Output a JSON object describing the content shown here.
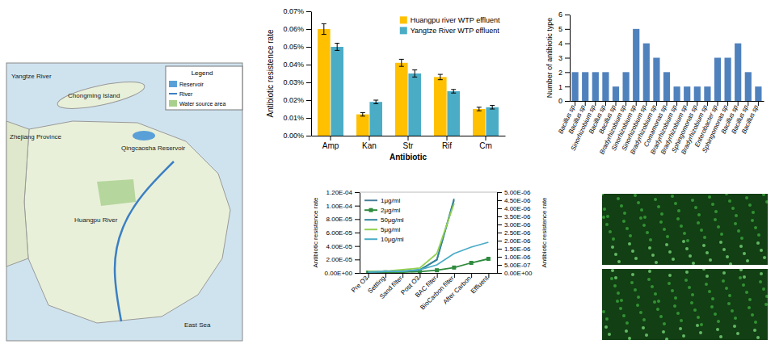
{
  "map": {
    "labels": [
      "Yangtze River",
      "Chongming Island",
      "Zhejiang Province",
      "Qingcaosha Reservoir",
      "Huangpu River",
      "East Sea"
    ],
    "legend": {
      "title": "Legend",
      "items": [
        "Reservoir",
        "River",
        "Water source area"
      ]
    }
  },
  "chart_data": [
    {
      "type": "bar",
      "x_label": "Antibiotic",
      "y_label": "Antibiotic resistence rate",
      "categories": [
        "Amp",
        "Kan",
        "Str",
        "Rif",
        "Cm"
      ],
      "series": [
        {
          "name": "Huangpu river WTP effluent",
          "color": "#ffc000",
          "values": [
            0.06,
            0.012,
            0.041,
            0.033,
            0.015
          ],
          "errors": [
            0.003,
            0.001,
            0.002,
            0.0015,
            0.001
          ]
        },
        {
          "name": "Yangtze River WTP effluent",
          "color": "#4bacc6",
          "values": [
            0.05,
            0.019,
            0.035,
            0.025,
            0.016
          ],
          "errors": [
            0.002,
            0.001,
            0.002,
            0.001,
            0.001
          ]
        }
      ],
      "ylim": [
        0,
        0.07
      ],
      "yticks": [
        {
          "value": 0,
          "label": "0.00%"
        },
        {
          "value": 0.01,
          "label": "0.01%"
        },
        {
          "value": 0.02,
          "label": "0.02%"
        },
        {
          "value": 0.03,
          "label": "0.03%"
        },
        {
          "value": 0.04,
          "label": "0.04%"
        },
        {
          "value": 0.05,
          "label": "0.05%"
        },
        {
          "value": 0.06,
          "label": "0.06%"
        },
        {
          "value": 0.07,
          "label": "0.07%"
        }
      ],
      "legend": "top-right"
    },
    {
      "type": "bar",
      "y_label": "Number of antibiotic type",
      "categories": [
        "Bacillus sp",
        "Bacillus sp",
        "Sinorhizobium sp",
        "Bacillus sp",
        "Bacillus sp",
        "Bradyrhizobium sp",
        "Sinorhizobium sp",
        "Sinorhizobium sp",
        "Bradyrhizobium sp",
        "Comamonas sp",
        "Bradyrhizobium sp",
        "Bradyrhizobium sp",
        "Sphingomonas sp",
        "Bradyrhizobium sp",
        "Enterobacter sp",
        "Sphingomonas sp",
        "Bacillus sp",
        "Bacillus sp",
        "Bacillus sp"
      ],
      "values": [
        2,
        2,
        2,
        2,
        1,
        2,
        5,
        4,
        3,
        2,
        1,
        1,
        1,
        1,
        3,
        3,
        4,
        2,
        1
      ],
      "color": "#4f81bd",
      "ylim": [
        0,
        6
      ],
      "yticks": [
        0,
        1,
        2,
        3,
        4,
        5,
        6
      ]
    },
    {
      "type": "line",
      "y_label": "Antibiotic resistence rate",
      "y2_label": "Antibiotic resistence rate",
      "categories": [
        "Pre O3",
        "Settling",
        "Sand filter",
        "Post O3",
        "BAC filter",
        "BioCarbon filter",
        "After Carbon",
        "Effluent"
      ],
      "series": [
        {
          "name": "1μg/ml",
          "color": "#4a7f9a",
          "values": [
            1e-06,
            2e-06,
            2e-06,
            4e-06,
            2e-05,
            0.000108,
            null,
            null
          ]
        },
        {
          "name": "2μg/ml",
          "color": "#2e8b3e",
          "marker": "square",
          "values": [
            5e-07,
            1e-06,
            1e-06,
            2e-06,
            4e-06,
            8e-06,
            1.5e-05,
            2.1e-05
          ]
        },
        {
          "name": "50μg/ml",
          "color": "#31859c",
          "axis": "y2",
          "values": [
            5e-08,
            1e-07,
            1e-07,
            2e-07,
            8e-07,
            4.6e-06,
            null,
            null
          ]
        },
        {
          "name": "5μg/ml",
          "color": "#92d050",
          "axis": "y2",
          "values": [
            1e-07,
            1e-07,
            2e-07,
            3e-07,
            1.2e-06,
            4.3e-06,
            null,
            null
          ]
        },
        {
          "name": "10μg/ml",
          "color": "#4bacc6",
          "axis": "y2",
          "values": [
            5e-08,
            1e-07,
            1e-07,
            2e-07,
            5e-07,
            1.2e-06,
            1.6e-06,
            1.9e-06
          ]
        }
      ],
      "ylim": [
        0,
        0.00012
      ],
      "yticks": [
        {
          "value": 0,
          "label": "0.00E+00"
        },
        {
          "value": 2e-05,
          "label": "2.00E-05"
        },
        {
          "value": 4e-05,
          "label": "4.00E-05"
        },
        {
          "value": 6e-05,
          "label": "6.00E-05"
        },
        {
          "value": 8e-05,
          "label": "8.00E-05"
        },
        {
          "value": 0.0001,
          "label": "1.00E-04"
        },
        {
          "value": 0.00012,
          "label": "1.20E-04"
        }
      ],
      "y2lim": [
        0,
        5e-06
      ],
      "y2ticks": [
        {
          "value": 0,
          "label": "0.00E+00"
        },
        {
          "value": 5e-07,
          "label": "5.00E-07"
        },
        {
          "value": 1e-06,
          "label": "1.00E-06"
        },
        {
          "value": 1.5e-06,
          "label": "1.50E-06"
        },
        {
          "value": 2e-06,
          "label": "2.00E-06"
        },
        {
          "value": 2.5e-06,
          "label": "2.50E-06"
        },
        {
          "value": 3e-06,
          "label": "3.00E-06"
        },
        {
          "value": 3.5e-06,
          "label": "3.50E-06"
        },
        {
          "value": 4e-06,
          "label": "4.00E-06"
        },
        {
          "value": 4.5e-06,
          "label": "4.50E-06"
        },
        {
          "value": 5e-06,
          "label": "5.00E-06"
        }
      ],
      "legend": "top-left"
    }
  ]
}
